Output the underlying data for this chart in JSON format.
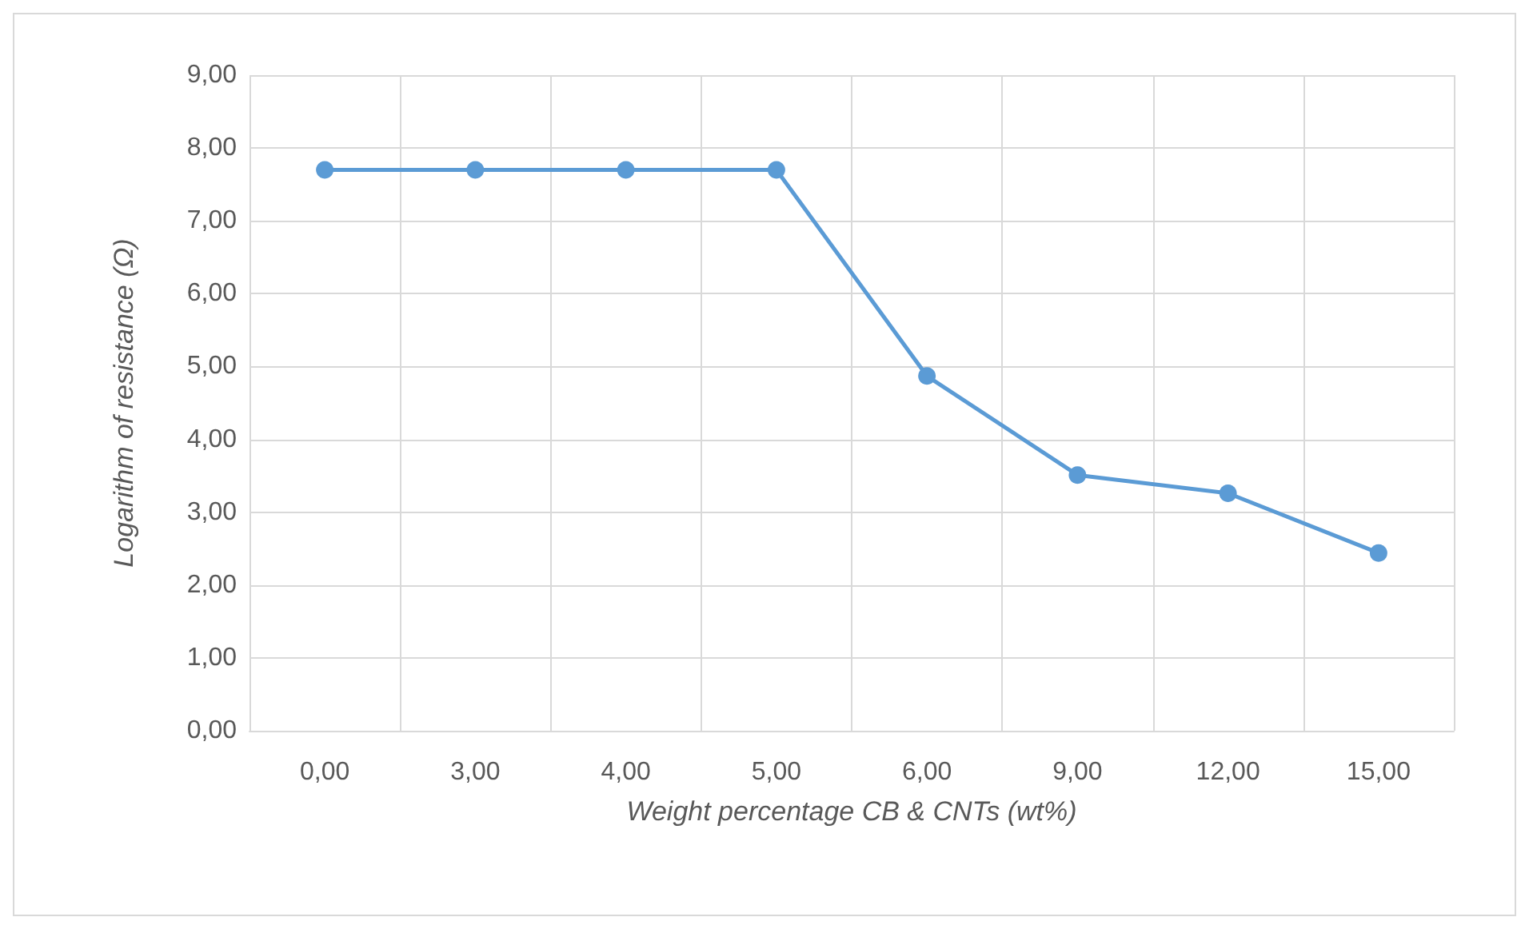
{
  "chart_data": {
    "type": "line",
    "xlabel": "Weight percentage CB & CNTs (wt%)",
    "ylabel": "Logarithm of resistance (Ω)",
    "categories": [
      "0,00",
      "3,00",
      "4,00",
      "5,00",
      "6,00",
      "9,00",
      "12,00",
      "15,00"
    ],
    "series": [
      {
        "color": "#5b9bd5",
        "values": [
          7.7,
          7.7,
          7.7,
          7.7,
          4.87,
          3.51,
          3.26,
          2.44
        ]
      }
    ],
    "ylim": [
      0,
      9
    ],
    "yticks": [
      {
        "value": 0,
        "label": "0,00"
      },
      {
        "value": 1,
        "label": "1,00"
      },
      {
        "value": 2,
        "label": "2,00"
      },
      {
        "value": 3,
        "label": "3,00"
      },
      {
        "value": 4,
        "label": "4,00"
      },
      {
        "value": 5,
        "label": "5,00"
      },
      {
        "value": 6,
        "label": "6,00"
      },
      {
        "value": 7,
        "label": "7,00"
      },
      {
        "value": 8,
        "label": "8,00"
      },
      {
        "value": 9,
        "label": "9,00"
      }
    ],
    "grid": true,
    "marker": "circle",
    "line_style": "solid"
  }
}
